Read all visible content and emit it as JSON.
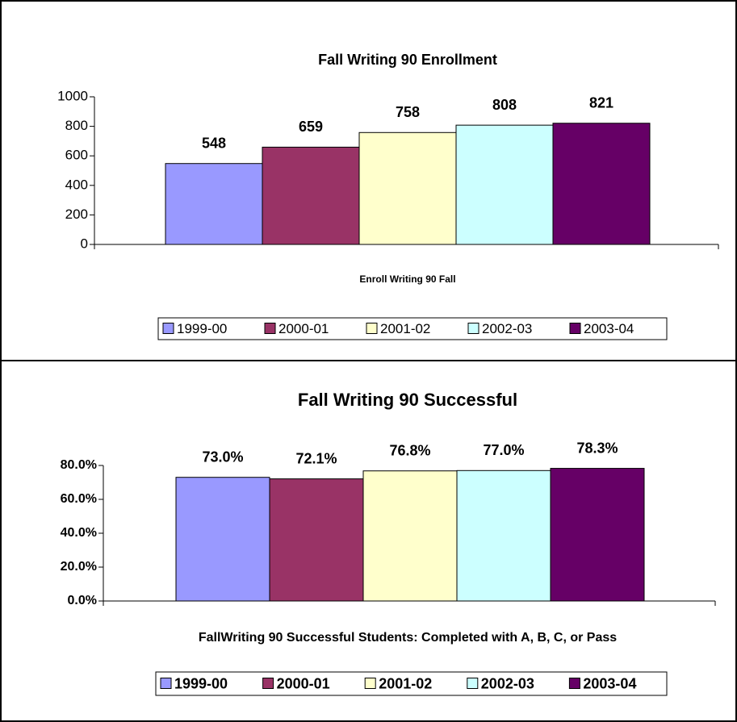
{
  "chart_data": [
    {
      "type": "bar",
      "title": "Fall Writing 90 Enrollment",
      "x_label": "Enroll Writing 90 Fall",
      "categories": [
        "Enroll Writing 90 Fall"
      ],
      "series": [
        {
          "name": "1999-00",
          "color": "#9999ff",
          "values": [
            548
          ]
        },
        {
          "name": "2000-01",
          "color": "#993366",
          "values": [
            659
          ]
        },
        {
          "name": "2001-02",
          "color": "#ffffcc",
          "values": [
            758
          ]
        },
        {
          "name": "2002-03",
          "color": "#ccffff",
          "values": [
            808
          ]
        },
        {
          "name": "2003-04",
          "color": "#660066",
          "values": [
            821
          ]
        }
      ],
      "ylim": [
        0,
        1000
      ],
      "yticks": [
        0,
        200,
        400,
        600,
        800,
        1000
      ],
      "legend": "bottom"
    },
    {
      "type": "bar",
      "title": "Fall Writing 90 Successful",
      "x_label": "FallWriting 90 Successful Students:  Completed with A, B, C, or Pass",
      "categories": [
        "FallWriting 90 Successful Students:  Completed with A, B, C, or Pass"
      ],
      "series": [
        {
          "name": "1999-00",
          "color": "#9999ff",
          "values": [
            73.0
          ],
          "value_labels": [
            "73.0%"
          ]
        },
        {
          "name": "2000-01",
          "color": "#993366",
          "values": [
            72.1
          ],
          "value_labels": [
            "72.1%"
          ]
        },
        {
          "name": "2001-02",
          "color": "#ffffcc",
          "values": [
            76.8
          ],
          "value_labels": [
            "76.8%"
          ]
        },
        {
          "name": "2002-03",
          "color": "#ccffff",
          "values": [
            77.0
          ],
          "value_labels": [
            "77.0%"
          ]
        },
        {
          "name": "2003-04",
          "color": "#660066",
          "values": [
            78.3
          ],
          "value_labels": [
            "78.3%"
          ]
        }
      ],
      "ylim": [
        0,
        80
      ],
      "yticks": [
        {
          "value": 0,
          "label": "0.0%"
        },
        {
          "value": 20,
          "label": "20.0%"
        },
        {
          "value": 40,
          "label": "40.0%"
        },
        {
          "value": 60,
          "label": "60.0%"
        },
        {
          "value": 80,
          "label": "80.0%"
        }
      ],
      "legend": "bottom"
    }
  ]
}
